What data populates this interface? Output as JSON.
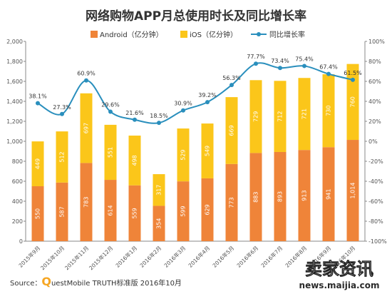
{
  "chart_data": {
    "type": "bar",
    "title": "网络购物APP月总使用时长及同比增长率",
    "categories": [
      "2015年9月",
      "2015年10月",
      "2015年11月",
      "2015年12月",
      "2016年1月",
      "2016年2月",
      "2016年3月",
      "2016年4月",
      "2016年5月",
      "2016年6月",
      "2016年7月",
      "2016年8月",
      "2016年9月",
      "2016年10月"
    ],
    "series": [
      {
        "name": "Android（亿分钟）",
        "kind": "bar",
        "color": "#ef8439",
        "values": [
          550,
          587,
          783,
          614,
          559,
          354,
          599,
          629,
          773,
          883,
          893,
          913,
          941,
          1014
        ],
        "labels": [
          "550",
          "587",
          "783",
          "614",
          "559",
          "354",
          "599",
          "629",
          "773",
          "883",
          "893",
          "913",
          "941",
          "1,014"
        ]
      },
      {
        "name": "iOS（亿分钟）",
        "kind": "bar",
        "color": "#fbc61a",
        "values": [
          449,
          512,
          697,
          551,
          498,
          317,
          529,
          549,
          669,
          729,
          712,
          721,
          730,
          760
        ],
        "labels": [
          "449",
          "512",
          "697",
          "551",
          "498",
          "317",
          "529",
          "549",
          "669",
          "729",
          "712",
          "721",
          "730",
          "760"
        ]
      },
      {
        "name": "同比增长率",
        "kind": "line",
        "color": "#2a8fbd",
        "values": [
          38.1,
          27.3,
          60.9,
          29.6,
          21.6,
          18.5,
          30.9,
          39.2,
          56.3,
          77.7,
          73.4,
          75.4,
          67.4,
          61.5
        ],
        "labels": [
          "38.1%",
          "27.3%",
          "60.9%",
          "29.6%",
          "21.6%",
          "18.5%",
          "30.9%",
          "39.2%",
          "56.3%",
          "77.7%",
          "73.4%",
          "75.4%",
          "67.4%",
          "61.5%"
        ]
      }
    ],
    "y_left": {
      "min": 0,
      "max": 2000,
      "ticks": [
        "0",
        "200",
        "400",
        "600",
        "800",
        "1,000",
        "1,200",
        "1,400",
        "1,600",
        "1,800",
        "2,000"
      ]
    },
    "y_right": {
      "min": -100,
      "max": 100,
      "ticks": [
        "-100%",
        "-80%",
        "-60%",
        "-40%",
        "-20%",
        "0%",
        "20%",
        "40%",
        "60%",
        "80%",
        "100%"
      ]
    },
    "grid": false,
    "legend_position": "top"
  },
  "footer": {
    "prefix": "Source：",
    "q": "Q",
    "rest": "uestMobile TRUTH标准版 2016年10月"
  },
  "watermark": {
    "name": "卖家资讯",
    "url": "news.maijia.com"
  }
}
